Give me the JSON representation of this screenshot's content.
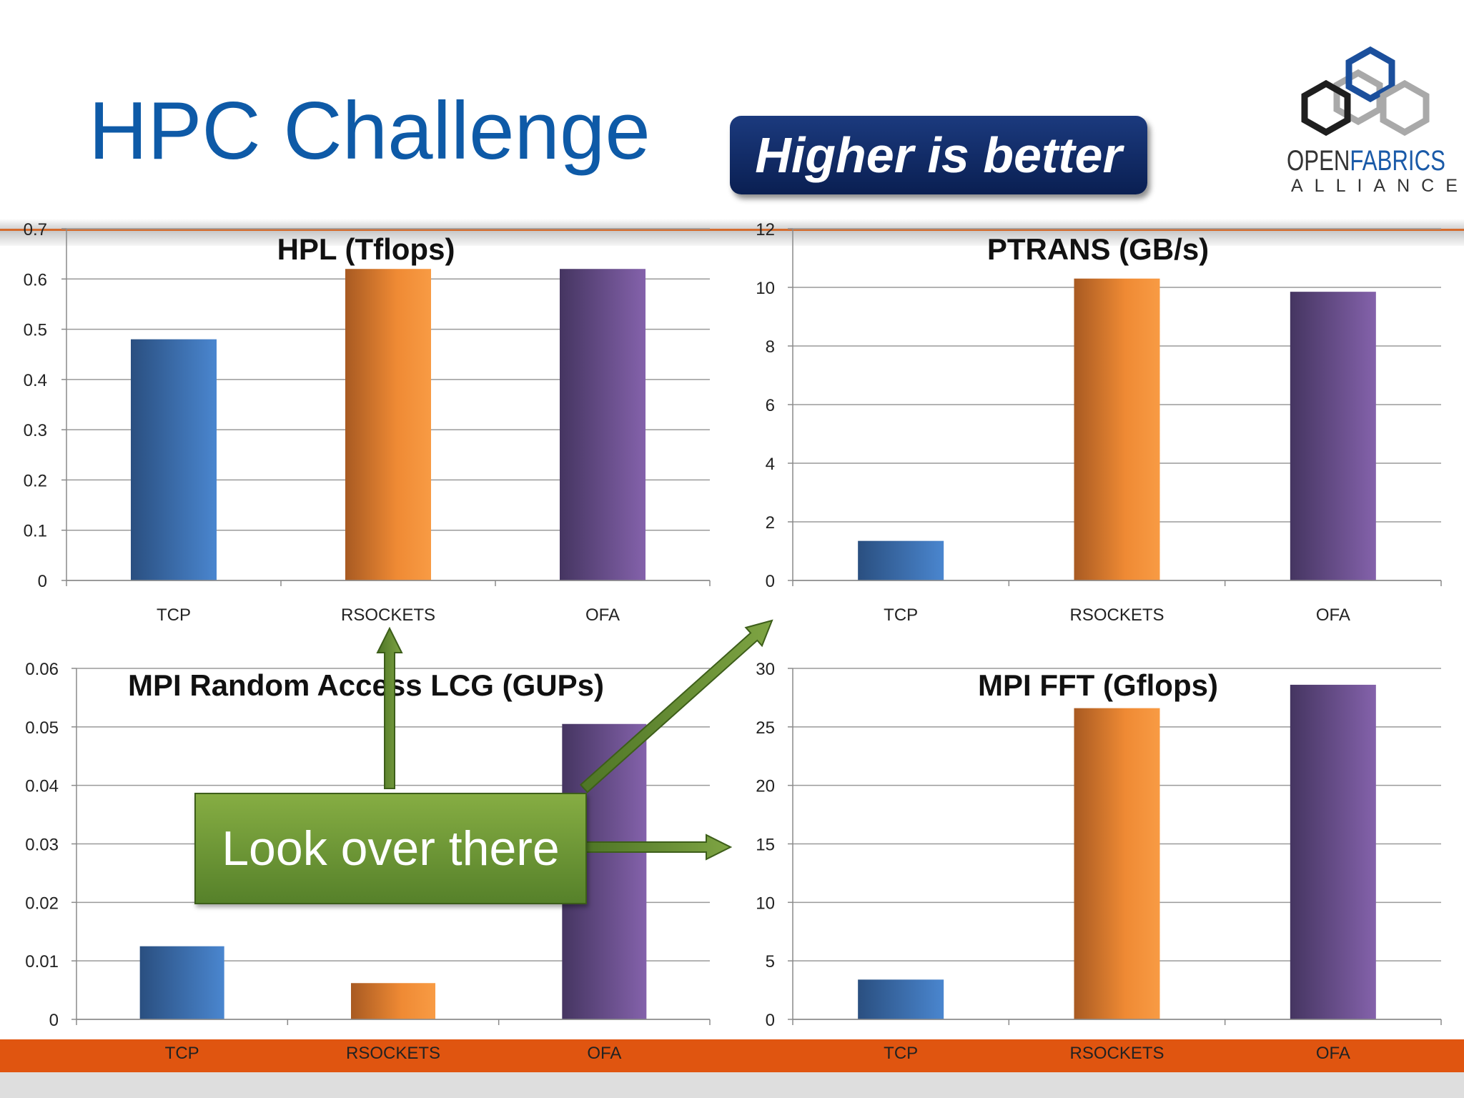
{
  "slide": {
    "title": "HPC Challenge",
    "badge": "Higher is better",
    "callout": "Look over there",
    "logo_line1_a": "OPEN",
    "logo_line1_b": "FABRICS",
    "logo_line2": "ALLIANCE"
  },
  "colors": {
    "title": "#0e5aa7",
    "tcp": "#3d73b8",
    "rsockets": "#ef8a34",
    "ofa": "#6c5396",
    "bottom_bar": "#e05510",
    "callout": "#6f9a35"
  },
  "chart_data": [
    {
      "type": "bar",
      "title": "HPL (Tflops)",
      "categories": [
        "TCP",
        "RSOCKETS",
        "OFA"
      ],
      "values": [
        0.48,
        0.62,
        0.62
      ],
      "ylim": [
        0,
        0.7
      ],
      "yticks": [
        "0",
        "0.1",
        "0.2",
        "0.3",
        "0.4",
        "0.5",
        "0.6",
        "0.7"
      ],
      "grid": true
    },
    {
      "type": "bar",
      "title": "PTRANS (GB/s)",
      "categories": [
        "TCP",
        "RSOCKETS",
        "OFA"
      ],
      "values": [
        1.35,
        10.3,
        9.85
      ],
      "ylim": [
        0,
        12
      ],
      "yticks": [
        "0",
        "2",
        "4",
        "6",
        "8",
        "10",
        "12"
      ],
      "grid": true
    },
    {
      "type": "bar",
      "title": "MPI Random Access LCG (GUPs)",
      "categories": [
        "TCP",
        "RSOCKETS",
        "OFA"
      ],
      "values": [
        0.0125,
        0.0062,
        0.0505
      ],
      "ylim": [
        0,
        0.06
      ],
      "yticks": [
        "0",
        "0.01",
        "0.02",
        "0.03",
        "0.04",
        "0.05",
        "0.06"
      ],
      "grid": true
    },
    {
      "type": "bar",
      "title": "MPI FFT (Gflops)",
      "categories": [
        "TCP",
        "RSOCKETS",
        "OFA"
      ],
      "values": [
        3.4,
        26.6,
        28.6
      ],
      "ylim": [
        0,
        30
      ],
      "yticks": [
        "0",
        "5",
        "10",
        "15",
        "20",
        "25",
        "30"
      ],
      "grid": true
    }
  ]
}
